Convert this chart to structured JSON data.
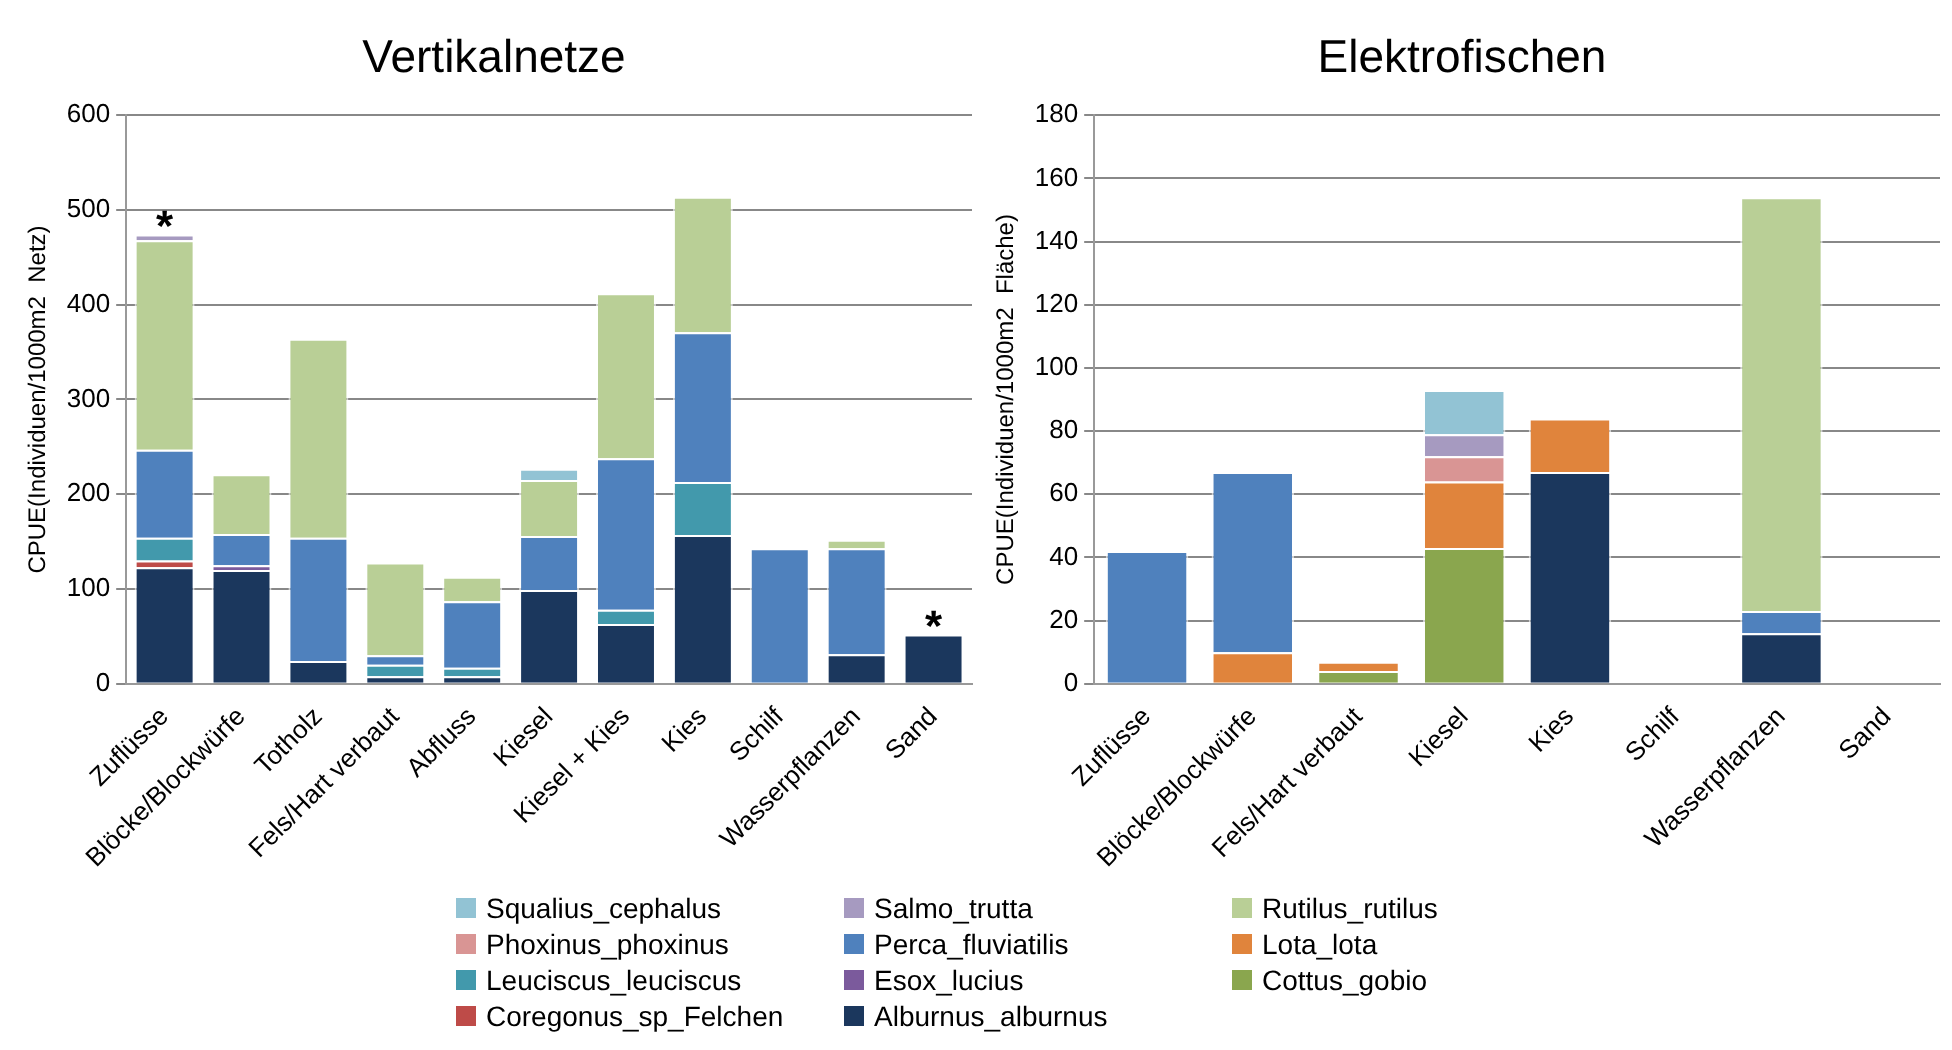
{
  "chart_data": [
    {
      "type": "bar",
      "title": "Vertikalnetze",
      "ylabel": "CPUE(Individuen/1000m2  Netz)",
      "stacked": true,
      "grid": "y",
      "legend": "bottom",
      "ylim": [
        0,
        600
      ],
      "yticks": [
        0,
        100,
        200,
        300,
        400,
        500,
        600
      ],
      "categories": [
        "Zuflüsse",
        "Blöcke/Blockwürfe",
        "Totholz",
        "Fels/Hart verbaut",
        "Abfluss",
        "Kiesel",
        "Kiesel + Kies",
        "Kies",
        "Schilf",
        "Wasserpflanzen",
        "Sand"
      ],
      "annotations": [
        {
          "text": "*",
          "x": "Zuflüsse",
          "y": 474
        },
        {
          "text": "*",
          "x": "Sand",
          "y": 52
        }
      ],
      "series": [
        {
          "name": "Alburnus_alburnus",
          "color": "#1b375d",
          "values": [
            123,
            120,
            24,
            8,
            8,
            99,
            63,
            157,
            null,
            31,
            52
          ]
        },
        {
          "name": "Coregonus_sp_Felchen",
          "color": "#be4b48",
          "values": [
            7,
            null,
            null,
            null,
            null,
            null,
            null,
            null,
            null,
            null,
            null
          ]
        },
        {
          "name": "Esox_lucius",
          "color": "#7b5a9c",
          "values": [
            null,
            5,
            null,
            null,
            null,
            null,
            null,
            null,
            null,
            null,
            null
          ]
        },
        {
          "name": "Leuciscus_leuciscus",
          "color": "#4299ac",
          "values": [
            24,
            null,
            null,
            12,
            9,
            null,
            15,
            56,
            null,
            null,
            null
          ]
        },
        {
          "name": "Perca_fluviatilis",
          "color": "#4f81bd",
          "values": [
            93,
            33,
            130,
            10,
            70,
            57,
            160,
            158,
            143,
            112,
            null
          ]
        },
        {
          "name": "Rutilus_rutilus",
          "color": "#b9cf96",
          "values": [
            221,
            63,
            210,
            98,
            26,
            59,
            174,
            143,
            null,
            9,
            null
          ]
        },
        {
          "name": "Salmo_trutta",
          "color": "#a69ac0",
          "values": [
            6,
            null,
            null,
            null,
            null,
            null,
            null,
            null,
            null,
            null,
            null
          ]
        },
        {
          "name": "Squalius_cephalus",
          "color": "#92c3d4",
          "values": [
            null,
            null,
            null,
            null,
            null,
            12,
            null,
            null,
            null,
            null,
            null
          ]
        }
      ]
    },
    {
      "type": "bar",
      "title": "Elektrofischen",
      "ylabel": "CPUE(Individuen/1000m2  Fläche)",
      "stacked": true,
      "grid": "y",
      "legend": "bottom",
      "ylim": [
        0,
        180
      ],
      "yticks": [
        0,
        20,
        40,
        60,
        80,
        100,
        120,
        140,
        160,
        180
      ],
      "categories": [
        "Zuflüsse",
        "Blöcke/Blockwürfe",
        "Fels/Hart verbaut",
        "Kiesel",
        "Kies",
        "Schilf",
        "Wasserpflanzen",
        "Sand"
      ],
      "series": [
        {
          "name": "Alburnus_alburnus",
          "color": "#1b375d",
          "values": [
            null,
            null,
            null,
            null,
            67,
            null,
            16,
            null
          ]
        },
        {
          "name": "Cottus_gobio",
          "color": "#8aa64e",
          "values": [
            null,
            null,
            4,
            43,
            null,
            null,
            null,
            null
          ]
        },
        {
          "name": "Lota_lota",
          "color": "#e0843c",
          "values": [
            null,
            10,
            3,
            21,
            17,
            null,
            null,
            null
          ]
        },
        {
          "name": "Perca_fluviatilis",
          "color": "#4f81bd",
          "values": [
            42,
            57,
            null,
            null,
            null,
            null,
            7,
            null
          ]
        },
        {
          "name": "Phoxinus_phoxinus",
          "color": "#d99594",
          "values": [
            null,
            null,
            null,
            8,
            null,
            null,
            null,
            null
          ]
        },
        {
          "name": "Rutilus_rutilus",
          "color": "#b9cf96",
          "values": [
            null,
            null,
            null,
            null,
            null,
            null,
            131,
            null
          ]
        },
        {
          "name": "Salmo_trutta",
          "color": "#a69ac0",
          "values": [
            null,
            null,
            null,
            7,
            null,
            null,
            null,
            null
          ]
        },
        {
          "name": "Squalius_cephalus",
          "color": "#92c3d4",
          "values": [
            null,
            null,
            null,
            14,
            null,
            null,
            null,
            null
          ]
        }
      ]
    }
  ]
}
